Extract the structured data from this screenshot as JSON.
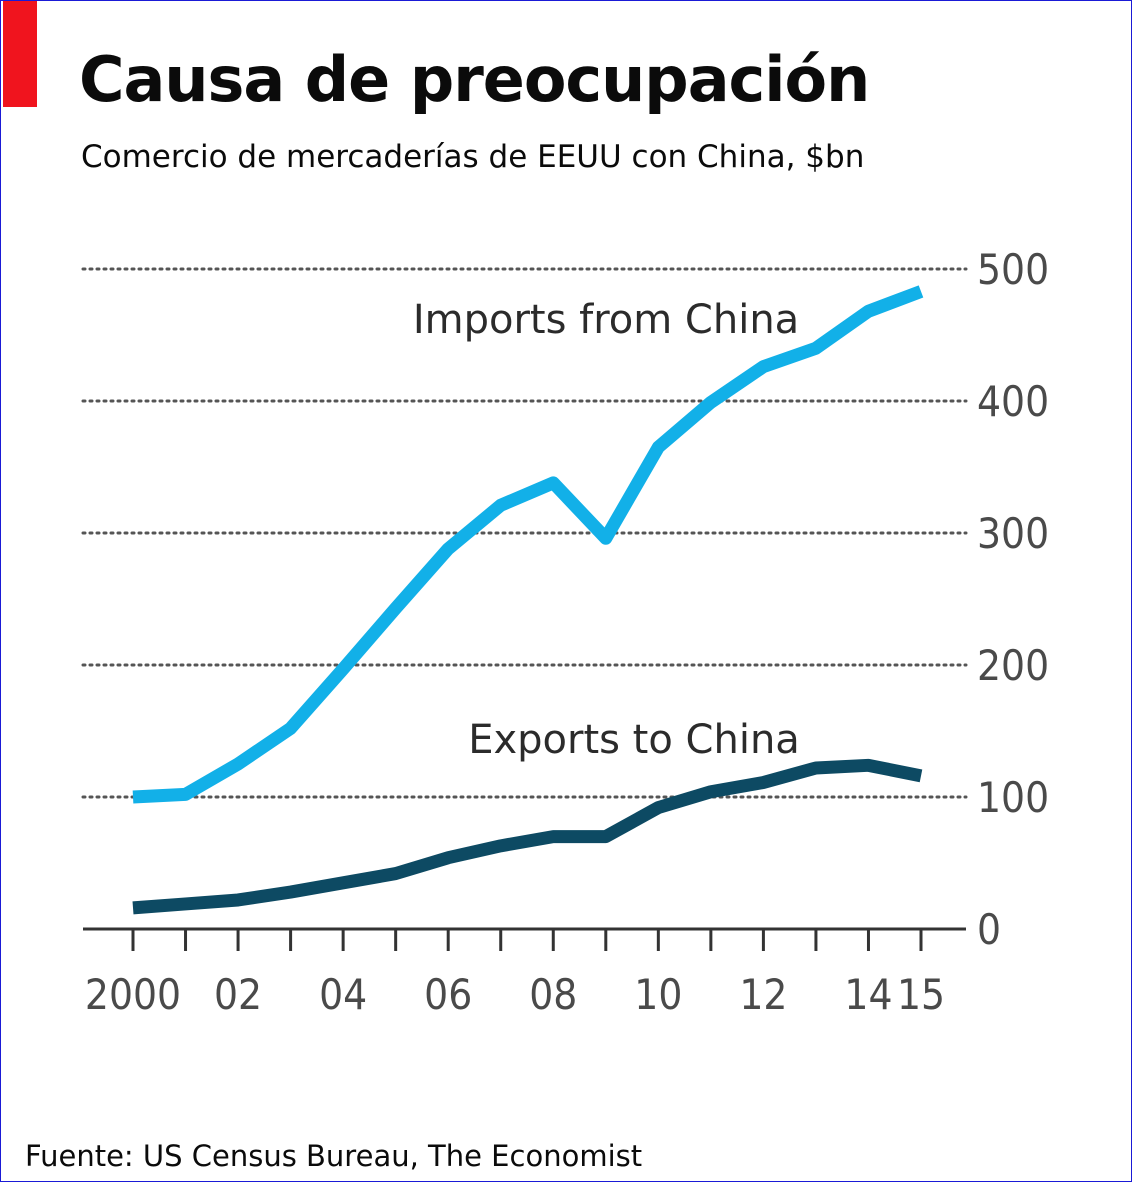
{
  "header": {
    "title": "Causa de preocupación",
    "subtitle": "Comercio de mercaderías de EEUU con China, $bn"
  },
  "footer": {
    "source": "Fuente: US Census Bureau, The Economist"
  },
  "colors": {
    "accent": "#f0141e",
    "imports": "#12b0e8",
    "exports": "#0d4a63",
    "grid": "#555555",
    "axis": "#333333"
  },
  "chart_data": {
    "type": "line",
    "title": "Causa de preocupación",
    "subtitle": "Comercio de mercaderías de EEUU con China, $bn",
    "x": [
      2000,
      2001,
      2002,
      2003,
      2004,
      2005,
      2006,
      2007,
      2008,
      2009,
      2010,
      2011,
      2012,
      2013,
      2014,
      2015
    ],
    "x_tick_labels": [
      "2000",
      "02",
      "04",
      "06",
      "08",
      "10",
      "12",
      "14",
      "15"
    ],
    "x_tick_values": [
      2000,
      2002,
      2004,
      2006,
      2008,
      2010,
      2012,
      2014,
      2015
    ],
    "ylim": [
      0,
      500
    ],
    "y_ticks": [
      0,
      100,
      200,
      300,
      400,
      500
    ],
    "y_axis_position": "right",
    "grid": "horizontal dotted",
    "legend": "inline labels",
    "series": [
      {
        "name": "Imports from China",
        "color": "#12b0e8",
        "values": [
          100,
          102,
          125,
          152,
          197,
          243,
          288,
          321,
          338,
          296,
          365,
          399,
          426,
          440,
          468,
          483
        ]
      },
      {
        "name": "Exports to China",
        "color": "#0d4a63",
        "values": [
          16,
          19,
          22,
          28,
          35,
          42,
          54,
          63,
          70,
          70,
          92,
          104,
          111,
          122,
          124,
          116
        ]
      }
    ]
  }
}
